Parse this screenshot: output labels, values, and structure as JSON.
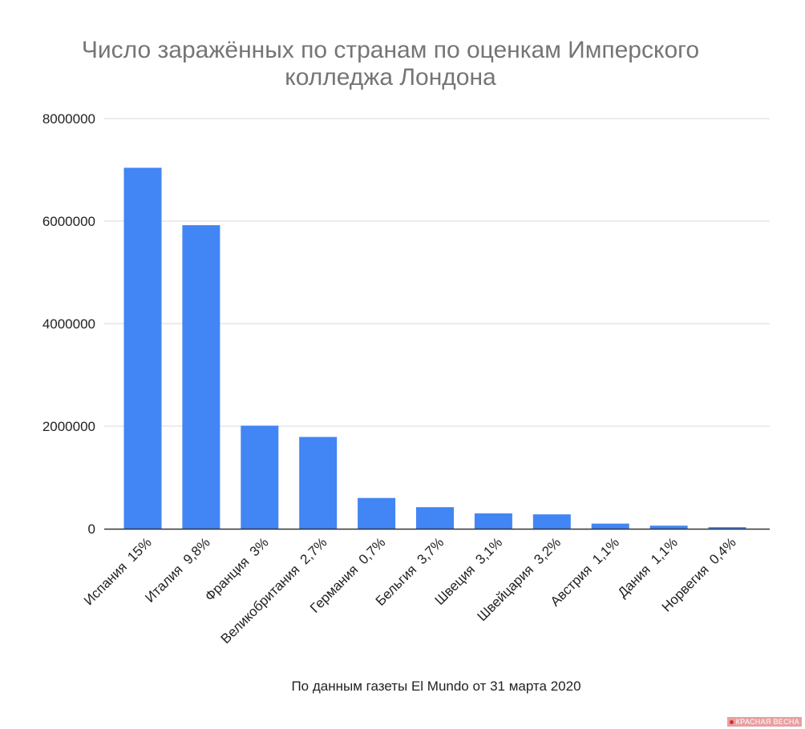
{
  "colors": {
    "bar": "#4285f4",
    "grid": "#d9d9d9",
    "axis": "#333333"
  },
  "watermark": {
    "text": "КРАСНАЯ ВЕСНА"
  },
  "chart_data": {
    "type": "bar",
    "title": [
      "Число заражённых по странам по оценкам Имперского",
      "колледжа Лондона"
    ],
    "xlabel": "По данным газеты El Mundo от 31 марта 2020",
    "ylabel": "",
    "ylim": [
      0,
      8000000
    ],
    "yticks": [
      0,
      2000000,
      4000000,
      6000000,
      8000000
    ],
    "grid": true,
    "legend": "none",
    "categories": [
      "Испания  15%",
      "Италия  9,8%",
      "Франция  3%",
      "Великобритания  2,7%",
      "Германия  0,7%",
      "Бельгия  3,7%",
      "Швеция  3,1%",
      "Швейцария  3,2%",
      "Австрия  1,1%",
      "Дания  1,1%",
      "Норвегия  0,4%"
    ],
    "values": [
      7040000,
      5920000,
      2010000,
      1790000,
      600000,
      420000,
      300000,
      280000,
      100000,
      60000,
      30000
    ]
  }
}
